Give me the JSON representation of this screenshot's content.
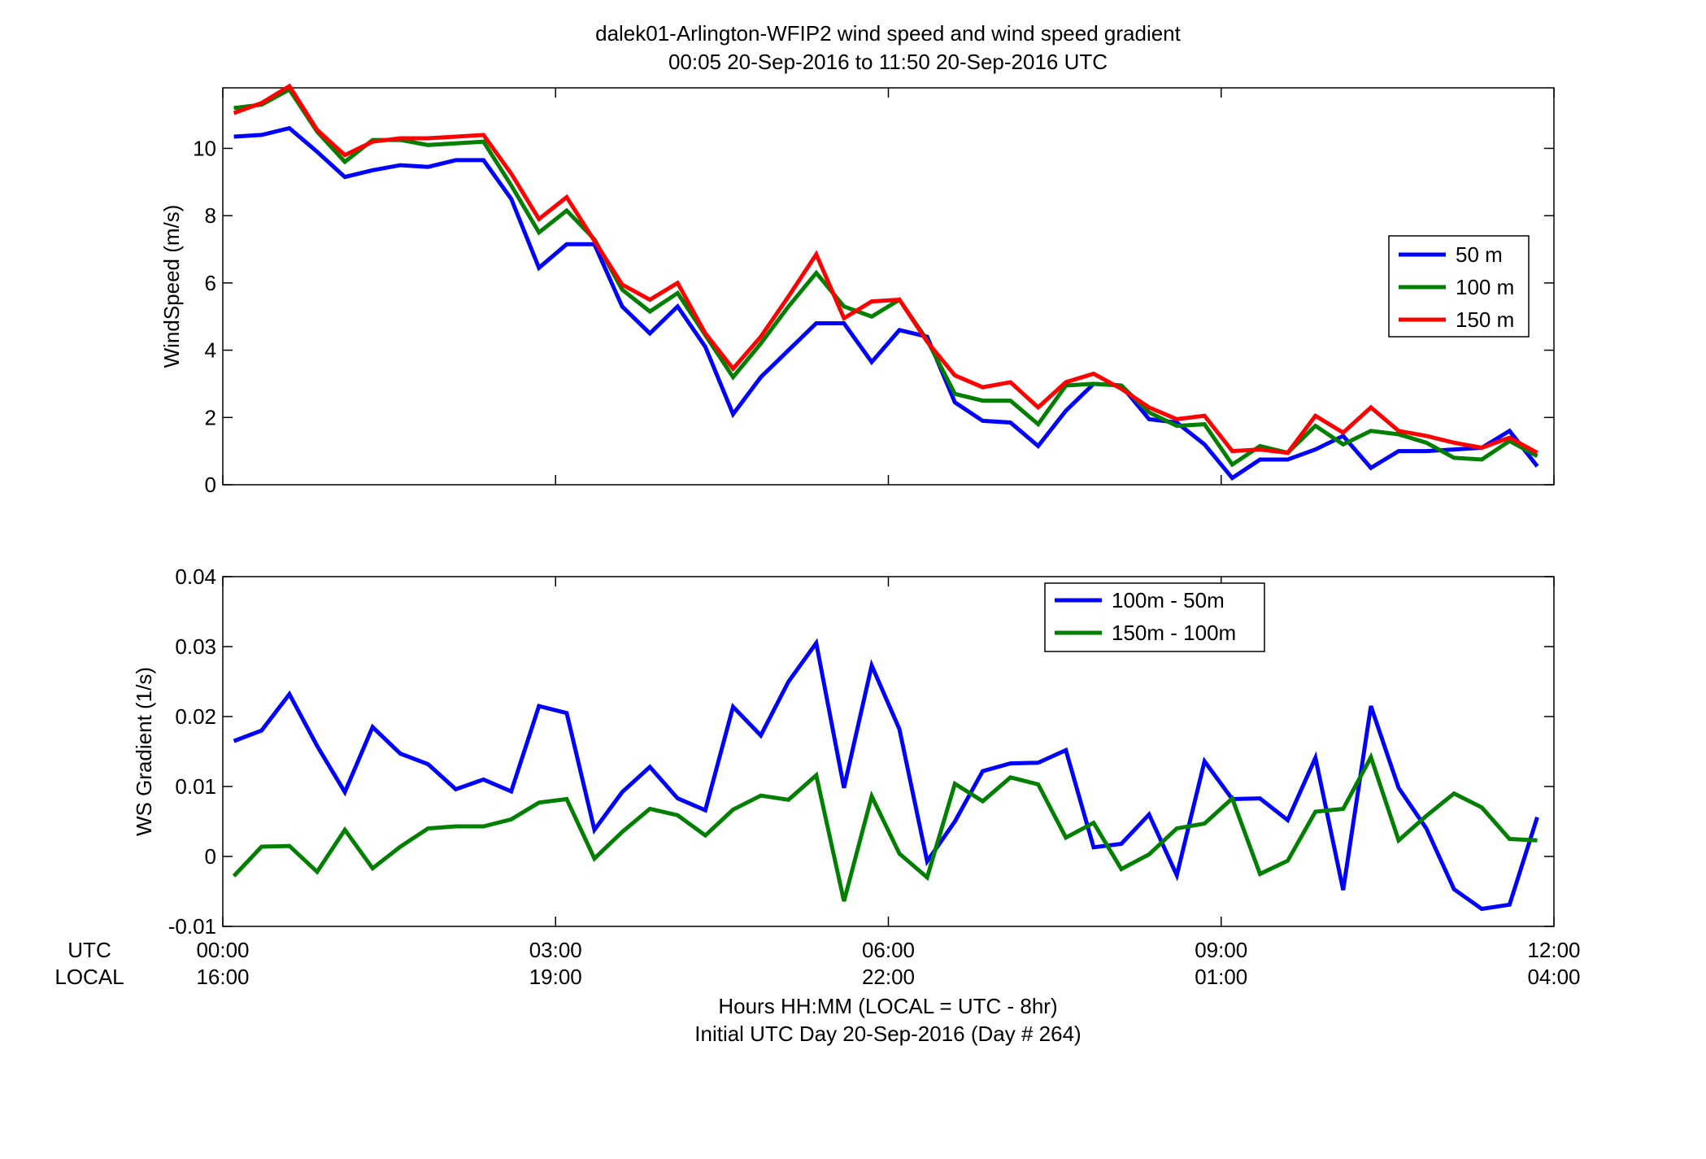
{
  "header": {
    "title_line1": "dalek01-Arlington-WFIP2  wind speed and wind speed gradient",
    "title_line2": "00:05 20-Sep-2016 to 11:50 20-Sep-2016  UTC"
  },
  "xaxis": {
    "utc_row_label": "UTC",
    "local_row_label": "LOCAL",
    "xlabel_line1": "Hours HH:MM  (LOCAL = UTC - 8hr)",
    "xlabel_line2": "Initial UTC Day 20-Sep-2016 (Day # 264)",
    "range_hours": [
      0,
      12
    ],
    "tick_hours": [
      0,
      3,
      6,
      9,
      12
    ],
    "utc_ticks": [
      "00:00",
      "03:00",
      "06:00",
      "09:00",
      "12:00"
    ],
    "local_ticks": [
      "16:00",
      "19:00",
      "22:00",
      "01:00",
      "04:00"
    ]
  },
  "colors": {
    "blue": "#0000ff",
    "green": "#007f00",
    "red": "#ff0000"
  },
  "chart_data": [
    {
      "type": "line",
      "id": "windspeed",
      "ylabel": "WindSpeed (m/s)",
      "ylim": [
        0,
        11.8
      ],
      "yticks": [
        0,
        2,
        4,
        6,
        8,
        10
      ],
      "ytick_labels": [
        "0",
        "2",
        "4",
        "6",
        "8",
        "10"
      ],
      "legend_position": "right",
      "x": [
        0.1,
        0.35,
        0.6,
        0.85,
        1.1,
        1.35,
        1.6,
        1.85,
        2.1,
        2.35,
        2.6,
        2.85,
        3.1,
        3.35,
        3.6,
        3.85,
        4.1,
        4.35,
        4.6,
        4.85,
        5.1,
        5.35,
        5.6,
        5.85,
        6.1,
        6.35,
        6.6,
        6.85,
        7.1,
        7.35,
        7.6,
        7.85,
        8.1,
        8.35,
        8.6,
        8.85,
        9.1,
        9.35,
        9.6,
        9.85,
        10.1,
        10.35,
        10.6,
        10.85,
        11.1,
        11.35,
        11.6,
        11.85
      ],
      "series": [
        {
          "name": "50 m",
          "color": "#0000ff",
          "values": [
            10.35,
            10.4,
            10.6,
            9.9,
            9.15,
            9.35,
            9.5,
            9.45,
            9.65,
            9.65,
            8.5,
            6.45,
            7.15,
            7.15,
            5.3,
            4.5,
            5.3,
            4.1,
            2.1,
            3.2,
            4.0,
            4.8,
            4.8,
            3.65,
            4.6,
            4.4,
            2.45,
            1.9,
            1.85,
            1.15,
            2.2,
            3.0,
            2.95,
            1.95,
            1.85,
            1.2,
            0.2,
            0.75,
            0.75,
            1.05,
            1.45,
            0.5,
            1.0,
            1.0,
            1.05,
            1.1,
            1.6,
            0.55
          ]
        },
        {
          "name": "100 m",
          "color": "#007f00",
          "values": [
            11.2,
            11.3,
            11.75,
            10.5,
            9.6,
            10.25,
            10.25,
            10.1,
            10.15,
            10.2,
            8.9,
            7.5,
            8.15,
            7.3,
            5.8,
            5.15,
            5.7,
            4.45,
            3.2,
            4.2,
            5.3,
            6.3,
            5.3,
            5.0,
            5.5,
            4.3,
            2.7,
            2.5,
            2.5,
            1.8,
            2.95,
            3.0,
            2.95,
            2.15,
            1.75,
            1.8,
            0.6,
            1.15,
            0.95,
            1.75,
            1.2,
            1.6,
            1.5,
            1.25,
            0.8,
            0.75,
            1.3,
            0.85
          ]
        },
        {
          "name": "150 m",
          "color": "#ff0000",
          "values": [
            11.05,
            11.35,
            11.85,
            10.55,
            9.8,
            10.2,
            10.3,
            10.3,
            10.35,
            10.4,
            9.25,
            7.9,
            8.55,
            7.25,
            5.95,
            5.5,
            6.0,
            4.5,
            3.45,
            4.4,
            5.6,
            6.85,
            4.95,
            5.45,
            5.5,
            4.25,
            3.25,
            2.9,
            3.05,
            2.3,
            3.05,
            3.3,
            2.85,
            2.3,
            1.95,
            2.05,
            1.0,
            1.05,
            0.95,
            2.05,
            1.55,
            2.3,
            1.6,
            1.45,
            1.25,
            1.1,
            1.4,
            0.95
          ]
        }
      ]
    },
    {
      "type": "line",
      "id": "gradient",
      "ylabel": "WS Gradient (1/s)",
      "ylim": [
        -0.01,
        0.04
      ],
      "yticks": [
        -0.01,
        0,
        0.01,
        0.02,
        0.03,
        0.04
      ],
      "ytick_labels": [
        "-0.01",
        "0",
        "0.01",
        "0.02",
        "0.03",
        "0.04"
      ],
      "legend_position": "top-right",
      "x": [
        0.1,
        0.35,
        0.6,
        0.85,
        1.1,
        1.35,
        1.6,
        1.85,
        2.1,
        2.35,
        2.6,
        2.85,
        3.1,
        3.35,
        3.6,
        3.85,
        4.1,
        4.35,
        4.6,
        4.85,
        5.1,
        5.35,
        5.6,
        5.85,
        6.1,
        6.35,
        6.6,
        6.85,
        7.1,
        7.35,
        7.6,
        7.85,
        8.1,
        8.35,
        8.6,
        8.85,
        9.1,
        9.35,
        9.6,
        9.85,
        10.1,
        10.35,
        10.6,
        10.85,
        11.1,
        11.35,
        11.6,
        11.85
      ],
      "series": [
        {
          "name": "100m - 50m",
          "color": "#0000ff",
          "values": [
            0.0165,
            0.018,
            0.0232,
            0.0158,
            0.0092,
            0.0185,
            0.0147,
            0.0132,
            0.0096,
            0.011,
            0.0093,
            0.0215,
            0.0205,
            0.0038,
            0.0092,
            0.0128,
            0.0083,
            0.0066,
            0.0214,
            0.0173,
            0.025,
            0.0305,
            0.0098,
            0.0273,
            0.0182,
            -0.0007,
            0.005,
            0.0122,
            0.0133,
            0.0134,
            0.0152,
            0.0013,
            0.0018,
            0.006,
            -0.0027,
            0.0136,
            0.0082,
            0.0083,
            0.0052,
            0.0141,
            -0.0048,
            0.0215,
            0.0098,
            0.004,
            -0.0047,
            -0.0075,
            -0.0069,
            0.0056
          ]
        },
        {
          "name": "150m - 100m",
          "color": "#007f00",
          "values": [
            -0.0028,
            0.0014,
            0.0015,
            -0.0022,
            0.0038,
            -0.0017,
            0.0014,
            0.004,
            0.0043,
            0.0043,
            0.0053,
            0.0077,
            0.0082,
            -0.0003,
            0.0035,
            0.0068,
            0.0059,
            0.003,
            0.0067,
            0.0087,
            0.0081,
            0.0116,
            -0.0064,
            0.0086,
            0.0004,
            -0.003,
            0.0104,
            0.0079,
            0.0113,
            0.0103,
            0.0027,
            0.0048,
            -0.0018,
            0.0003,
            0.004,
            0.0047,
            0.0083,
            -0.0025,
            -0.0006,
            0.0064,
            0.0068,
            0.0142,
            0.0023,
            0.0058,
            0.009,
            0.007,
            0.0025,
            0.0023
          ]
        }
      ]
    }
  ]
}
